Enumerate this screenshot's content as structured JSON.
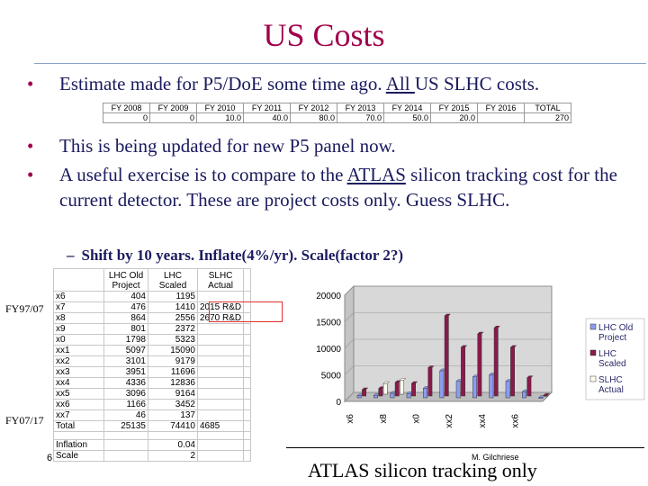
{
  "slide": {
    "title": "US Costs",
    "bullets": [
      {
        "text_before": "Estimate made for P5/DoE some time ago. ",
        "underlined": "All ",
        "text_after": "US SLHC costs."
      },
      {
        "text": "This is being updated for new P5 panel now."
      },
      {
        "text_before": "A useful exercise is to compare to the ",
        "underlined": "ATLAS",
        "text_after": " silicon tracking cost for the current detector. These are project costs only. Guess SLHC."
      }
    ],
    "bullet_glyph": "•",
    "sub_dash": "–",
    "sub_bullet": "Shift by 10 years. Inflate(4%/yr). Scale(factor 2?)",
    "side_labels": {
      "top": "FY97/07",
      "bottom": "FY07/17",
      "page_num": "6"
    },
    "footer_name": "M. Gilchriese",
    "footer_text": "ATLAS silicon tracking only"
  },
  "fy_table": {
    "headers": [
      "FY 2008",
      "FY 2009",
      "FY 2010",
      "FY 2011",
      "FY 2012",
      "FY 2013",
      "FY 2014",
      "FY 2015",
      "FY 2016",
      "TOTAL"
    ],
    "values": [
      "0",
      "0",
      "10.0",
      "40.0",
      "80.0",
      "70.0",
      "50.0",
      "20.0",
      "",
      "270"
    ]
  },
  "spreadsheet": {
    "headers": [
      "",
      "LHC Old Project",
      "LHC Scaled",
      "SLHC Actual"
    ],
    "rows": [
      [
        "x6",
        "404",
        "1195",
        ""
      ],
      [
        "x7",
        "476",
        "1410",
        "2015 R&D"
      ],
      [
        "x8",
        "864",
        "2556",
        "2670 R&D"
      ],
      [
        "x9",
        "801",
        "2372",
        ""
      ],
      [
        "x0",
        "1798",
        "5323",
        ""
      ],
      [
        "xx1",
        "5097",
        "15090",
        ""
      ],
      [
        "xx2",
        "3101",
        "9179",
        ""
      ],
      [
        "xx3",
        "3951",
        "11696",
        ""
      ],
      [
        "xx4",
        "4336",
        "12836",
        ""
      ],
      [
        "xx5",
        "3096",
        "9164",
        ""
      ],
      [
        "xx6",
        "1166",
        "3452",
        ""
      ],
      [
        "xx7",
        "46",
        "137",
        ""
      ],
      [
        "Total",
        "25135",
        "74410",
        "4685"
      ]
    ],
    "footer_rows": [
      [
        "Inflation",
        "",
        "0.04",
        ""
      ],
      [
        "Scale",
        "",
        "2",
        ""
      ]
    ]
  },
  "chart_data": {
    "type": "bar",
    "categories": [
      "x6",
      "x7",
      "x8",
      "x9",
      "x0",
      "xx1",
      "xx2",
      "xx3",
      "xx4",
      "xx5",
      "xx6",
      "xx7"
    ],
    "x_tick_labels": [
      "x6",
      "x8",
      "x0",
      "xx2",
      "xx4",
      "xx6"
    ],
    "y_ticks": [
      "0",
      "5000",
      "10000",
      "15000",
      "20000"
    ],
    "ylim": [
      0,
      20000
    ],
    "series": [
      {
        "name": "LHC Old Project",
        "values": [
          404,
          476,
          864,
          801,
          1798,
          5097,
          3101,
          3951,
          4336,
          3096,
          1166,
          46
        ],
        "color": "#8c9cf0"
      },
      {
        "name": "LHC Scaled",
        "values": [
          1195,
          1410,
          2556,
          2372,
          5323,
          15090,
          9179,
          11696,
          12836,
          9164,
          3452,
          137
        ],
        "color": "#8a1a4a"
      },
      {
        "name": "SLHC Actual",
        "values": [
          0,
          2015,
          2670,
          0,
          0,
          0,
          0,
          0,
          0,
          0,
          0,
          0
        ],
        "color": "#fffff0"
      }
    ],
    "legend_position": "right",
    "grid": true
  }
}
